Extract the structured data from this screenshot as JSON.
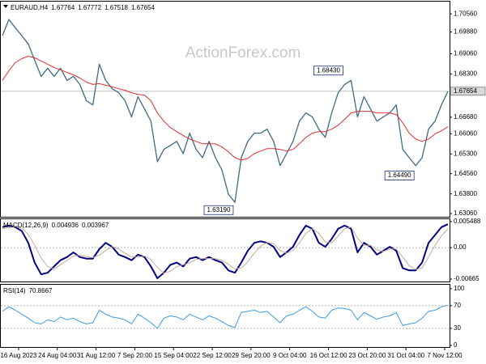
{
  "chart_data": [
    {
      "type": "line",
      "title": "EURAUD,H4",
      "title_values": [
        1.67764,
        1.67772,
        1.67518,
        1.67654
      ],
      "watermark": "ActionForex.com",
      "xlim": [
        -0.25,
        69.25
      ],
      "ylim": [
        1.6294,
        1.7102
      ],
      "yticks": [
        {
          "value": 1.7056,
          "label": "1.70560"
        },
        {
          "value": 1.6988,
          "label": "1.69880"
        },
        {
          "value": 1.6906,
          "label": "1.69060"
        },
        {
          "value": 1.683,
          "label": "1.68300"
        },
        {
          "value": 1.6668,
          "label": "1.66680"
        },
        {
          "value": 1.6606,
          "label": "1.66060"
        },
        {
          "value": 1.653,
          "label": "1.65300"
        },
        {
          "value": 1.6456,
          "label": "1.64560"
        },
        {
          "value": 1.638,
          "label": "1.63800"
        },
        {
          "value": 1.6306,
          "label": "1.63060"
        }
      ],
      "last": 1.67654,
      "series": [
        {
          "color": "#3f6a88",
          "values": [
            1.6974,
            1.7035,
            1.7004,
            1.6974,
            1.6943,
            1.6882,
            1.6821,
            1.6852,
            1.6821,
            1.6852,
            1.6806,
            1.6821,
            1.6791,
            1.673,
            1.6714,
            1.6867,
            1.6806,
            1.6775,
            1.676,
            1.673,
            1.6669,
            1.6745,
            1.6699,
            1.6653,
            1.6501,
            1.6547,
            1.6562,
            1.6577,
            1.6531,
            1.6608,
            1.6547,
            1.6516,
            1.6577,
            1.6516,
            1.647,
            1.6379,
            1.6348,
            1.6516,
            1.6577,
            1.6608,
            1.6608,
            1.6623,
            1.6577,
            1.6486,
            1.6531,
            1.6577,
            1.6653,
            1.6684,
            1.6669,
            1.6623,
            1.6592,
            1.6684,
            1.676,
            1.6791,
            1.6806,
            1.6669,
            1.6745,
            1.6699,
            1.6653,
            1.6669,
            1.6684,
            1.6714,
            1.6547,
            1.6516,
            1.6486,
            1.6516,
            1.6623,
            1.6653,
            1.6714,
            1.6765
          ]
        },
        {
          "color": "#e03030",
          "values": [
            1.6806,
            1.6843,
            1.6873,
            1.6888,
            1.6897,
            1.6891,
            1.6879,
            1.6867,
            1.6855,
            1.6846,
            1.6836,
            1.6827,
            1.6815,
            1.68,
            1.6791,
            1.6794,
            1.6788,
            1.6782,
            1.6775,
            1.6769,
            1.676,
            1.6754,
            1.6751,
            1.673,
            1.6684,
            1.6653,
            1.6629,
            1.6614,
            1.6599,
            1.6586,
            1.6577,
            1.6568,
            1.6568,
            1.6568,
            1.6556,
            1.6538,
            1.6516,
            1.6507,
            1.6513,
            1.6531,
            1.6541,
            1.655,
            1.655,
            1.6547,
            1.6541,
            1.6547,
            1.6568,
            1.6592,
            1.6608,
            1.6614,
            1.6614,
            1.6623,
            1.6638,
            1.666,
            1.6684,
            1.669,
            1.669,
            1.669,
            1.6684,
            1.6684,
            1.6684,
            1.6678,
            1.6647,
            1.6608,
            1.6586,
            1.6577,
            1.6586,
            1.6605,
            1.6617,
            1.6632
          ]
        }
      ],
      "annotations": [
        {
          "x": 36,
          "value": 1.6319,
          "label": "1.63190"
        },
        {
          "x": 53,
          "value": 1.6843,
          "label": "1.68430"
        },
        {
          "x": 64,
          "value": 1.6449,
          "label": "1.64490"
        }
      ]
    },
    {
      "type": "line",
      "title": "MACD(12,26,9)",
      "title_values": [
        0.004936,
        0.003967
      ],
      "xlim": [
        -0.25,
        69.25
      ],
      "ylim": [
        -0.00715,
        0.00599
      ],
      "yticks": [
        0.005488,
        {
          "value": 0,
          "label": "0.00"
        },
        -0.00665
      ],
      "levels": [
        0
      ],
      "series": [
        {
          "color": "#000080",
          "values": [
            0.00432,
            0.00465,
            0.00432,
            0.00349,
            0.001,
            -0.00315,
            -0.00564,
            -0.00531,
            -0.00398,
            -0.00266,
            -0.00199,
            -0.001,
            -0.00199,
            -0.00232,
            -0.00232,
            -0.00033,
            0.001,
            0.00017,
            -0.00149,
            -0.00199,
            -0.00266,
            -0.00149,
            -0.00199,
            -0.00398,
            -0.00647,
            -0.00531,
            -0.00365,
            -0.00315,
            -0.00398,
            -0.00232,
            -0.00199,
            -0.00266,
            -0.00199,
            -0.00266,
            -0.00315,
            -0.00481,
            -0.00531,
            -0.00315,
            -0.00066,
            0.001,
            0.00133,
            0.001,
            0.00017,
            -0.00199,
            -0.001,
            0.00017,
            0.00266,
            0.00465,
            0.00398,
            0.001,
            0.00017,
            0.00183,
            0.00398,
            0.00465,
            0.00398,
            -0.001,
            0.001,
            0.00017,
            -0.00149,
            -0.00066,
            0.00017,
            -0.00066,
            -0.00432,
            -0.00481,
            -0.00481,
            -0.00315,
            0.001,
            0.00266,
            0.00432,
            0.004936
          ]
        },
        {
          "color": "#c9a89c",
          "values": [
            0.004,
            0.0042,
            0.0044,
            0.0041,
            0.0028,
            0.0005,
            -0.0022,
            -0.004,
            -0.0045,
            -0.0036,
            -0.0027,
            -0.0018,
            -0.0016,
            -0.0019,
            -0.0021,
            -0.0016,
            -0.0006,
            0.0002,
            -0.0003,
            -0.0012,
            -0.002,
            -0.002,
            -0.0018,
            -0.0025,
            -0.0042,
            -0.0054,
            -0.005,
            -0.004,
            -0.0036,
            -0.0032,
            -0.0025,
            -0.0023,
            -0.0023,
            -0.0023,
            -0.0027,
            -0.0035,
            -0.0045,
            -0.0043,
            -0.003,
            -0.0012,
            0.0003,
            0.0011,
            0.0008,
            -0.0006,
            -0.0012,
            -0.0006,
            0.001,
            0.003,
            0.004,
            0.003,
            0.0012,
            0.001,
            0.0025,
            0.004,
            0.0043,
            0.002,
            0.0005,
            0.0005,
            -0.0005,
            -0.0008,
            -0.0003,
            -0.0003,
            -0.002,
            -0.0038,
            -0.0046,
            -0.0043,
            -0.002,
            0.0005,
            0.0025,
            0.003967
          ]
        }
      ]
    },
    {
      "type": "line",
      "title": "RSI(14)",
      "title_values": [
        70.8667
      ],
      "xlim": [
        -0.25,
        69.25
      ],
      "ylim": [
        -2.8,
        106.9
      ],
      "yticks": [
        100,
        70,
        30,
        0
      ],
      "levels": [
        70,
        30
      ],
      "xticks": [
        {
          "value": 2.5,
          "label": "16 Aug 2023"
        },
        {
          "value": 8.5,
          "label": "24 Aug 04:00"
        },
        {
          "value": 14.5,
          "label": "31 Aug 12:00"
        },
        {
          "value": 20.5,
          "label": "7 Sep 20:00"
        },
        {
          "value": 26.5,
          "label": "15 Sep 04:00"
        },
        {
          "value": 32.5,
          "label": "22 Sep 12:00"
        },
        {
          "value": 38.5,
          "label": "29 Sep 20:00"
        },
        {
          "value": 44.5,
          "label": "9 Oct 04:00"
        },
        {
          "value": 50.5,
          "label": "16 Oct 12:00"
        },
        {
          "value": 56.5,
          "label": "23 Oct 20:00"
        },
        {
          "value": 62.5,
          "label": "31 Oct 04:00"
        },
        {
          "value": 68.5,
          "label": "7 Nov 12:00"
        }
      ],
      "series": [
        {
          "color": "#3d9be0",
          "values": [
            60,
            68,
            62,
            55,
            48,
            40,
            38,
            45,
            42,
            50,
            45,
            48,
            42,
            38,
            40,
            62,
            55,
            50,
            48,
            45,
            38,
            55,
            48,
            40,
            30,
            48,
            52,
            50,
            45,
            55,
            50,
            45,
            52,
            48,
            42,
            35,
            32,
            58,
            60,
            62,
            58,
            60,
            50,
            40,
            52,
            55,
            62,
            68,
            60,
            50,
            48,
            62,
            66,
            65,
            62,
            45,
            58,
            52,
            46,
            50,
            52,
            58,
            35,
            38,
            40,
            48,
            60,
            62,
            68,
            70.8667
          ]
        }
      ]
    }
  ]
}
